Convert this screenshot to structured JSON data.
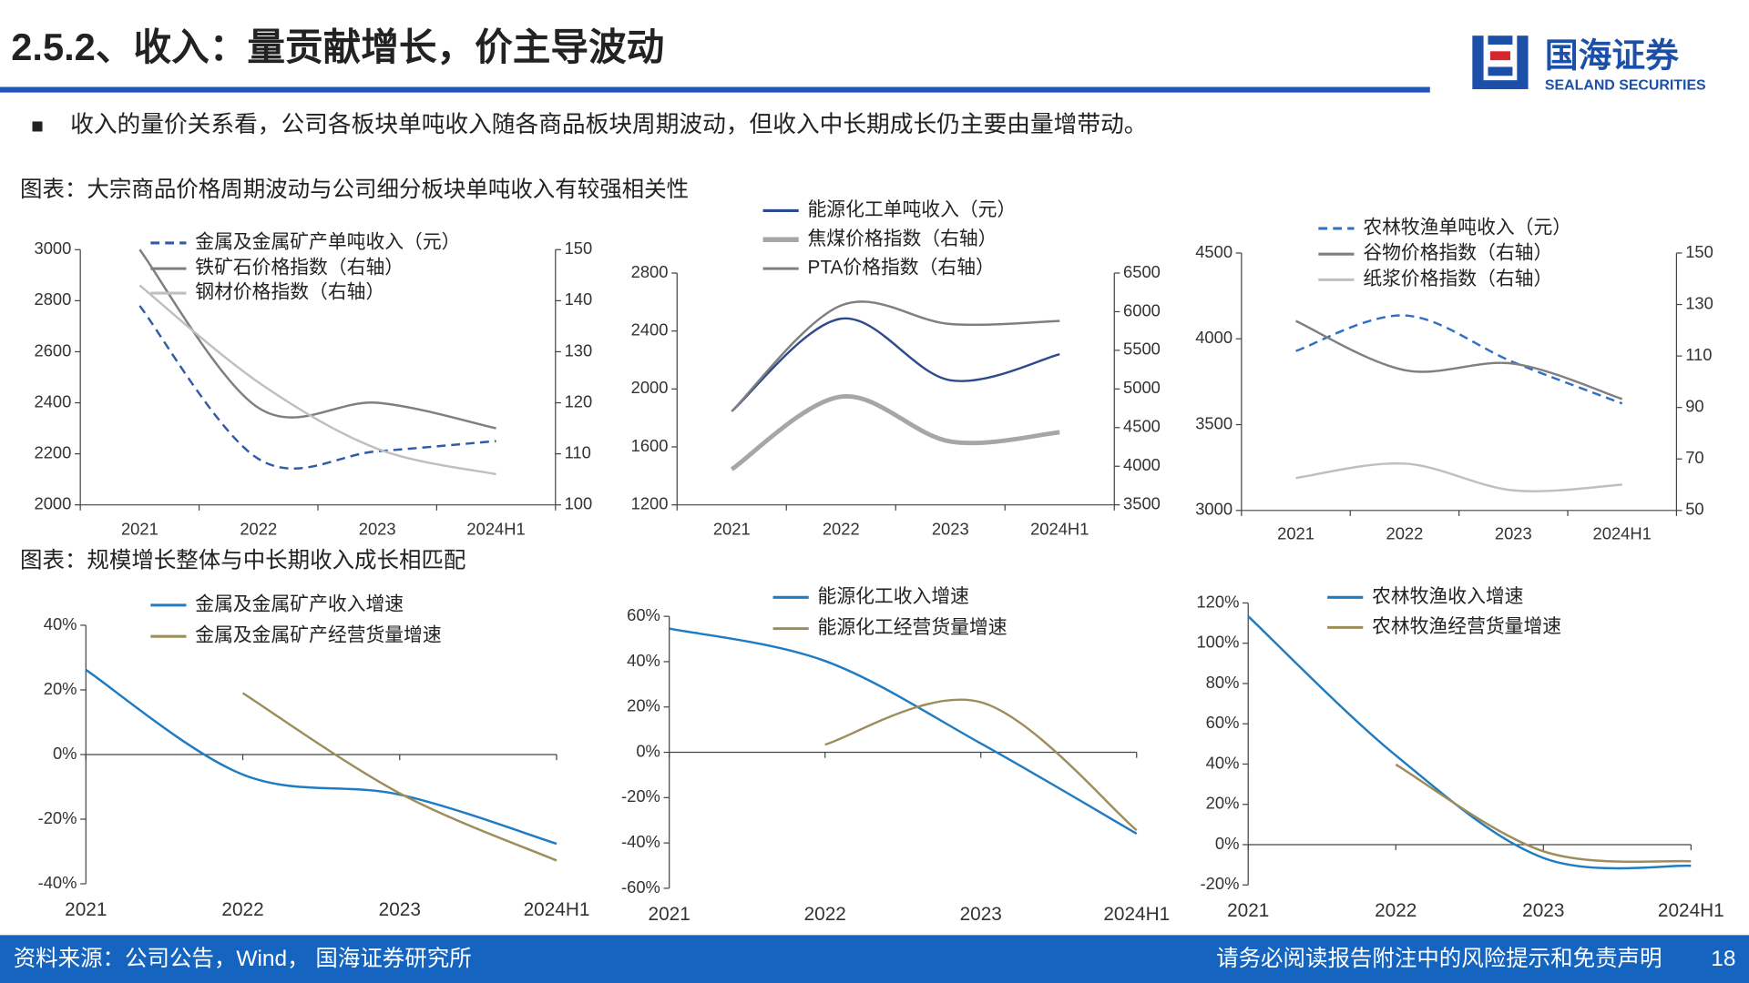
{
  "header": {
    "title": "2.5.2、收入：量贡献增长，价主导波动",
    "logo_name": "国海证券",
    "logo_subtitle": "SEALAND SECURITIES"
  },
  "bullet": "收入的量价关系看，公司各板块单吨收入随各商品板块周期波动，但收入中长期成长仍主要由量增带动。",
  "figure_captions": [
    "图表：大宗商品价格周期波动与公司细分板块单吨收入有较强相关性",
    "图表：规模增长整体与中长期收入成长相匹配"
  ],
  "chart_data": [
    {
      "type": "line",
      "categories": [
        "2021",
        "2022",
        "2023",
        "2024H1"
      ],
      "ylim": [
        2000,
        3000
      ],
      "yticks": [
        2000,
        2200,
        2400,
        2600,
        2800,
        3000
      ],
      "y2lim": [
        100,
        150
      ],
      "y2ticks": [
        100,
        110,
        120,
        130,
        140,
        150
      ],
      "series": [
        {
          "name": "金属及金属矿产单吨收入（元）",
          "color": "#2F5BA8",
          "line_style": "dashed",
          "values": [
            2780,
            2180,
            2210,
            2250
          ]
        },
        {
          "name": "铁矿石价格指数（右轴）",
          "color": "#7F7F7F",
          "axis": "y2",
          "values": [
            150,
            119,
            120,
            115
          ]
        },
        {
          "name": "钢材价格指数（右轴）",
          "color": "#BFBFBF",
          "axis": "y2",
          "values": [
            143,
            124,
            111,
            106
          ]
        }
      ]
    },
    {
      "type": "line",
      "categories": [
        "2021",
        "2022",
        "2023",
        "2024H1"
      ],
      "ylim": [
        1200,
        2800
      ],
      "yticks": [
        1200,
        1600,
        2000,
        2400,
        2800
      ],
      "y2lim": [
        3500,
        6500
      ],
      "y2ticks": [
        3500,
        4000,
        4500,
        5000,
        5500,
        6000,
        6500
      ],
      "series": [
        {
          "name": "能源化工单吨收入（元）",
          "color": "#2E4A8E",
          "values": [
            1846,
            2485,
            2060,
            2240
          ]
        },
        {
          "name": "焦煤价格指数（右轴）",
          "color": "#A6A6A6",
          "axis": "y2",
          "line_width": 4,
          "values": [
            3960,
            4900,
            4320,
            4440
          ]
        },
        {
          "name": "PTA价格指数（右轴）",
          "color": "#7F7F7F",
          "axis": "y2",
          "values": [
            4710,
            6080,
            5840,
            5880
          ]
        }
      ]
    },
    {
      "type": "line",
      "categories": [
        "2021",
        "2022",
        "2023",
        "2024H1"
      ],
      "ylim": [
        3000,
        4500
      ],
      "yticks": [
        3000,
        3500,
        4000,
        4500
      ],
      "y2lim": [
        50,
        150
      ],
      "y2ticks": [
        50,
        70,
        90,
        110,
        130,
        150
      ],
      "series": [
        {
          "name": "农林牧渔单吨收入（元）",
          "color": "#2F6FC4",
          "line_style": "dashed",
          "values": [
            3929,
            4136,
            3864,
            3623
          ]
        },
        {
          "name": "谷物价格指数（右轴）",
          "color": "#7F7F7F",
          "axis": "y2",
          "values": [
            123.6,
            104.5,
            107,
            93.3
          ]
        },
        {
          "name": "纸浆价格指数（右轴）",
          "color": "#BFBFBF",
          "axis": "y2",
          "values": [
            62.6,
            68.2,
            57.8,
            60
          ]
        }
      ]
    },
    {
      "type": "line",
      "categories": [
        "2021",
        "2022",
        "2023",
        "2024H1"
      ],
      "ylim": [
        -40,
        40
      ],
      "yticks": [
        {
          "value": -40,
          "label": "-40%"
        },
        {
          "value": -20,
          "label": "-20%"
        },
        {
          "value": 0,
          "label": "0%"
        },
        {
          "value": 20,
          "label": "20%"
        },
        {
          "value": 40,
          "label": "40%"
        }
      ],
      "series": [
        {
          "name": "金属及金属矿产收入增速",
          "color": "#1F7BC2",
          "values": [
            26.2,
            -6.2,
            -12.4,
            -27.6
          ]
        },
        {
          "name": "金属及金属矿产经营货量增速",
          "color": "#9C8D5A",
          "values": [
            null,
            19,
            -12,
            -32.8
          ]
        }
      ]
    },
    {
      "type": "line",
      "categories": [
        "2021",
        "2022",
        "2023",
        "2024H1"
      ],
      "ylim": [
        -60,
        60
      ],
      "yticks": [
        {
          "value": -60,
          "label": "-60%"
        },
        {
          "value": -40,
          "label": "-40%"
        },
        {
          "value": -20,
          "label": "-20%"
        },
        {
          "value": 0,
          "label": "0%"
        },
        {
          "value": 20,
          "label": "20%"
        },
        {
          "value": 40,
          "label": "40%"
        },
        {
          "value": 60,
          "label": "60%"
        }
      ],
      "series": [
        {
          "name": "能源化工收入增速",
          "color": "#1F7BC2",
          "values": [
            54.6,
            40.3,
            3.9,
            -35.9
          ]
        },
        {
          "name": "能源化工经营货量增速",
          "color": "#9C8D5A",
          "values": [
            null,
            3.4,
            22.1,
            -34.4
          ]
        }
      ]
    },
    {
      "type": "line",
      "categories": [
        "2021",
        "2022",
        "2023",
        "2024H1"
      ],
      "ylim": [
        -20,
        120
      ],
      "yticks": [
        {
          "value": -20,
          "label": "-20%"
        },
        {
          "value": 0,
          "label": "0%"
        },
        {
          "value": 20,
          "label": "20%"
        },
        {
          "value": 40,
          "label": "40%"
        },
        {
          "value": 60,
          "label": "60%"
        },
        {
          "value": 80,
          "label": "80%"
        },
        {
          "value": 100,
          "label": "100%"
        },
        {
          "value": 120,
          "label": "120%"
        }
      ],
      "series": [
        {
          "name": "农林牧渔收入增速",
          "color": "#1F7BC2",
          "values": [
            113.4,
            44.3,
            -6.6,
            -10.5
          ]
        },
        {
          "name": "农林牧渔经营货量增速",
          "color": "#9C8D5A",
          "values": [
            null,
            39.8,
            -3.3,
            -8.3
          ]
        }
      ]
    }
  ],
  "footer": {
    "source": "资料来源：公司公告，Wind， 国海证券研究所",
    "disclaimer": "请务必阅读报告附注中的风险提示和免责声明",
    "page": 18
  }
}
